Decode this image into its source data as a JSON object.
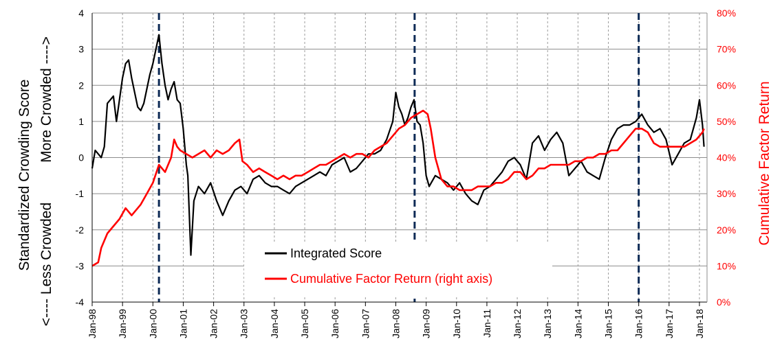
{
  "chart_data": {
    "type": "line",
    "title": "",
    "ylabel_left_line1": "Standardized Crowding Score",
    "ylabel_left_top": "More Crowded ---->",
    "ylabel_left_bottom": "<---- Less Crowded",
    "ylabel_right": "Cumulative Factor Return",
    "ylim_left": [
      -4,
      4
    ],
    "ylim_right": [
      0,
      0.8
    ],
    "left_ticks": [
      "-4",
      "-3",
      "-2",
      "-1",
      "0",
      "1",
      "2",
      "3",
      "4"
    ],
    "right_ticks": [
      "0%",
      "10%",
      "20%",
      "30%",
      "40%",
      "50%",
      "60%",
      "70%",
      "80%"
    ],
    "x_ticks": [
      "Jan-98",
      "Jan-99",
      "Jan-00",
      "Jan-01",
      "Jan-02",
      "Jan-03",
      "Jan-04",
      "Jan-05",
      "Jan-06",
      "Jan-07",
      "Jan-08",
      "Jan-09",
      "Jan-10",
      "Jan-11",
      "Jan-12",
      "Jan-13",
      "Jan-14",
      "Jan-15",
      "Jan-16",
      "Jan-17",
      "Jan-18"
    ],
    "x_range": [
      "Jan-98",
      "Mar-18"
    ],
    "grid": "horizontal solid, vertical dashed",
    "legend_position": "bottom-center",
    "vertical_markers": [
      2000.2,
      2008.62,
      2016.0
    ],
    "series": [
      {
        "name": "Integrated Score",
        "axis": "left",
        "color": "#000000",
        "x": [
          1998.0,
          1998.1,
          1998.2,
          1998.3,
          1998.4,
          1998.5,
          1998.6,
          1998.7,
          1998.8,
          1998.9,
          1999.0,
          1999.1,
          1999.2,
          1999.3,
          1999.4,
          1999.5,
          1999.6,
          1999.7,
          1999.8,
          1999.9,
          2000.0,
          2000.1,
          2000.2,
          2000.3,
          2000.4,
          2000.5,
          2000.6,
          2000.7,
          2000.8,
          2000.9,
          2001.0,
          2001.1,
          2001.15,
          2001.25,
          2001.35,
          2001.5,
          2001.7,
          2001.9,
          2002.1,
          2002.3,
          2002.5,
          2002.7,
          2002.9,
          2003.1,
          2003.3,
          2003.5,
          2003.7,
          2003.9,
          2004.1,
          2004.3,
          2004.5,
          2004.7,
          2004.9,
          2005.1,
          2005.3,
          2005.5,
          2005.7,
          2005.9,
          2006.1,
          2006.3,
          2006.5,
          2006.7,
          2006.9,
          2007.1,
          2007.3,
          2007.5,
          2007.7,
          2007.9,
          2008.0,
          2008.1,
          2008.2,
          2008.3,
          2008.4,
          2008.5,
          2008.6,
          2008.7,
          2008.8,
          2008.9,
          2009.0,
          2009.1,
          2009.3,
          2009.5,
          2009.7,
          2009.9,
          2010.1,
          2010.3,
          2010.5,
          2010.7,
          2010.9,
          2011.1,
          2011.3,
          2011.5,
          2011.7,
          2011.9,
          2012.1,
          2012.3,
          2012.5,
          2012.7,
          2012.9,
          2013.1,
          2013.3,
          2013.5,
          2013.7,
          2013.9,
          2014.1,
          2014.3,
          2014.5,
          2014.7,
          2014.9,
          2015.1,
          2015.3,
          2015.5,
          2015.7,
          2015.9,
          2016.1,
          2016.3,
          2016.5,
          2016.7,
          2016.9,
          2017.1,
          2017.3,
          2017.5,
          2017.7,
          2017.9,
          2018.0,
          2018.1,
          2018.15
        ],
        "values": [
          -0.3,
          0.2,
          0.1,
          0.0,
          0.3,
          1.5,
          1.6,
          1.7,
          1.0,
          1.6,
          2.2,
          2.6,
          2.7,
          2.2,
          1.8,
          1.4,
          1.3,
          1.5,
          1.9,
          2.3,
          2.6,
          3.0,
          3.4,
          2.6,
          2.0,
          1.6,
          1.9,
          2.1,
          1.6,
          1.5,
          0.8,
          -0.2,
          -0.5,
          -2.7,
          -1.2,
          -0.8,
          -1.0,
          -0.7,
          -1.2,
          -1.6,
          -1.2,
          -0.9,
          -0.8,
          -1.0,
          -0.6,
          -0.5,
          -0.7,
          -0.8,
          -0.8,
          -0.9,
          -1.0,
          -0.8,
          -0.7,
          -0.6,
          -0.5,
          -0.4,
          -0.5,
          -0.2,
          -0.1,
          0.0,
          -0.4,
          -0.3,
          -0.1,
          0.1,
          0.1,
          0.2,
          0.5,
          1.0,
          1.8,
          1.4,
          1.2,
          0.9,
          1.1,
          1.4,
          1.6,
          1.0,
          0.9,
          0.4,
          -0.5,
          -0.8,
          -0.5,
          -0.6,
          -0.7,
          -0.9,
          -0.7,
          -1.0,
          -1.2,
          -1.3,
          -0.9,
          -0.8,
          -0.6,
          -0.4,
          -0.1,
          0.0,
          -0.2,
          -0.6,
          0.4,
          0.6,
          0.2,
          0.5,
          0.7,
          0.4,
          -0.5,
          -0.3,
          -0.1,
          -0.4,
          -0.5,
          -0.6,
          0.0,
          0.5,
          0.8,
          0.9,
          0.9,
          1.0,
          1.2,
          0.9,
          0.7,
          0.8,
          0.5,
          -0.2,
          0.1,
          0.4,
          0.5,
          1.1,
          1.6,
          0.9,
          0.3
        ]
      },
      {
        "name": "Cumulative Factor Return (right axis)",
        "axis": "right",
        "color": "#ff0000",
        "x": [
          1998.0,
          1998.2,
          1998.3,
          1998.5,
          1998.7,
          1998.9,
          1999.1,
          1999.3,
          1999.5,
          1999.6,
          1999.8,
          2000.0,
          2000.2,
          2000.4,
          2000.6,
          2000.7,
          2000.8,
          2000.9,
          2001.1,
          2001.3,
          2001.5,
          2001.7,
          2001.9,
          2002.1,
          2002.3,
          2002.5,
          2002.7,
          2002.85,
          2002.95,
          2003.1,
          2003.3,
          2003.5,
          2003.7,
          2003.9,
          2004.1,
          2004.3,
          2004.5,
          2004.7,
          2004.9,
          2005.1,
          2005.3,
          2005.5,
          2005.7,
          2005.9,
          2006.1,
          2006.3,
          2006.5,
          2006.7,
          2006.9,
          2007.1,
          2007.3,
          2007.5,
          2007.7,
          2007.9,
          2008.1,
          2008.3,
          2008.5,
          2008.7,
          2008.9,
          2009.05,
          2009.15,
          2009.3,
          2009.5,
          2009.7,
          2009.9,
          2010.1,
          2010.3,
          2010.5,
          2010.7,
          2010.9,
          2011.1,
          2011.3,
          2011.5,
          2011.7,
          2011.9,
          2012.1,
          2012.3,
          2012.5,
          2012.7,
          2012.9,
          2013.1,
          2013.3,
          2013.5,
          2013.7,
          2013.9,
          2014.1,
          2014.3,
          2014.5,
          2014.7,
          2014.9,
          2015.1,
          2015.3,
          2015.5,
          2015.7,
          2015.9,
          2016.1,
          2016.3,
          2016.5,
          2016.7,
          2016.9,
          2017.1,
          2017.3,
          2017.5,
          2017.7,
          2017.9,
          2018.1,
          2018.15
        ],
        "values": [
          0.1,
          0.11,
          0.15,
          0.19,
          0.21,
          0.23,
          0.26,
          0.24,
          0.26,
          0.27,
          0.3,
          0.33,
          0.38,
          0.36,
          0.4,
          0.45,
          0.43,
          0.42,
          0.41,
          0.4,
          0.41,
          0.42,
          0.4,
          0.42,
          0.41,
          0.42,
          0.44,
          0.45,
          0.39,
          0.38,
          0.36,
          0.37,
          0.36,
          0.35,
          0.34,
          0.35,
          0.34,
          0.35,
          0.35,
          0.36,
          0.37,
          0.38,
          0.38,
          0.39,
          0.4,
          0.41,
          0.4,
          0.41,
          0.41,
          0.4,
          0.42,
          0.43,
          0.44,
          0.46,
          0.48,
          0.49,
          0.51,
          0.52,
          0.53,
          0.52,
          0.48,
          0.4,
          0.34,
          0.32,
          0.32,
          0.31,
          0.31,
          0.31,
          0.32,
          0.32,
          0.32,
          0.33,
          0.33,
          0.34,
          0.36,
          0.36,
          0.34,
          0.35,
          0.37,
          0.37,
          0.38,
          0.38,
          0.38,
          0.38,
          0.39,
          0.39,
          0.4,
          0.4,
          0.41,
          0.41,
          0.42,
          0.42,
          0.44,
          0.46,
          0.48,
          0.48,
          0.47,
          0.44,
          0.43,
          0.43,
          0.43,
          0.43,
          0.43,
          0.44,
          0.45,
          0.47,
          0.48
        ]
      }
    ]
  }
}
